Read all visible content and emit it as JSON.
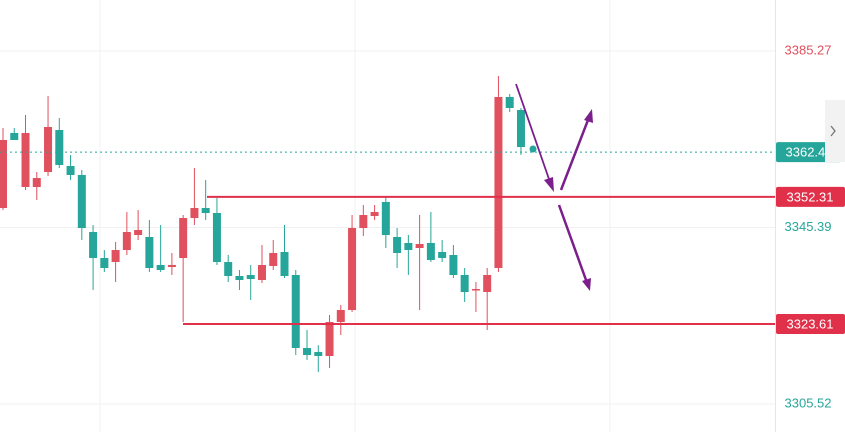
{
  "chart_data": {
    "type": "candlestick",
    "up_color": "#e0505e",
    "down_color": "#26a69a",
    "ylim": [
      3299.2,
      3396.79
    ],
    "yticks": [
      3385.27,
      3345.39,
      3305.52
    ],
    "ytick_colors": [
      "#e0505e",
      "#26a69a",
      "#26a69a"
    ],
    "grid": true,
    "open": [
      3349.8,
      3366.75,
      3354.55,
      3354.55,
      3357.94,
      3367.42,
      3359.29,
      3357.26,
      3344.38,
      3338.51,
      3337.6,
      3340.31,
      3343.7,
      3343.25,
      3336.93,
      3336.47,
      3338.51,
      3347.54,
      3349.8,
      3348.67,
      3337.6,
      3334.44,
      3334.67,
      3333.54,
      3336.7,
      3339.86,
      3334.67,
      3318.18,
      3317.27,
      3316.37,
      3324.05,
      3326.76,
      3345.28,
      3348.0,
      3351.16,
      3343.25,
      3341.9,
      3340.77,
      3341.9,
      3339.86,
      3339.19,
      3334.67,
      3331.28,
      3330.83,
      3336.25,
      3374.88,
      3371.94
    ],
    "high": [
      3367.87,
      3367.87,
      3370.81,
      3357.94,
      3375.1,
      3370.13,
      3361.78,
      3358.39,
      3345.96,
      3340.31,
      3342.12,
      3348.9,
      3349.35,
      3347.09,
      3345.96,
      3339.64,
      3348.22,
      3358.84,
      3356.13,
      3352.06,
      3339.19,
      3335.8,
      3336.93,
      3341.44,
      3342.57,
      3345.96,
      3335.8,
      3322.24,
      3318.8,
      3325.63,
      3327.89,
      3348.22,
      3350.48,
      3350.48,
      3352.51,
      3345.28,
      3343.7,
      3348.22,
      3348.9,
      3342.57,
      3341.44,
      3336.25,
      3333.09,
      3336.25,
      3379.62,
      3375.56,
      3372.39
    ],
    "low": [
      3349.35,
      3365.16,
      3353.87,
      3351.61,
      3357.03,
      3358.84,
      3356.13,
      3342.57,
      3331.28,
      3335.35,
      3333.09,
      3339.19,
      3342.57,
      3335.35,
      3335.35,
      3334.67,
      3324.05,
      3345.96,
      3347.09,
      3336.93,
      3333.09,
      3331.28,
      3329.02,
      3332.86,
      3335.8,
      3333.99,
      3316.6,
      3315.47,
      3312.76,
      3313.66,
      3321.11,
      3326.31,
      3343.48,
      3347.09,
      3340.77,
      3336.25,
      3334.67,
      3326.76,
      3337.6,
      3337.6,
      3333.99,
      3328.57,
      3326.31,
      3322.24,
      3335.35,
      3371.49,
      3361.78
    ],
    "close": [
      3365.16,
      3365.16,
      3366.75,
      3356.58,
      3368.1,
      3359.52,
      3357.26,
      3345.28,
      3338.51,
      3336.25,
      3340.31,
      3344.38,
      3344.83,
      3336.25,
      3335.8,
      3336.93,
      3347.54,
      3349.8,
      3348.67,
      3337.6,
      3334.44,
      3333.54,
      3333.76,
      3336.93,
      3339.64,
      3334.44,
      3318.18,
      3316.6,
      3316.37,
      3324.05,
      3326.76,
      3345.28,
      3348.22,
      3348.9,
      3343.7,
      3339.64,
      3340.31,
      3341.67,
      3338.06,
      3338.51,
      3334.67,
      3330.83,
      3331.5,
      3334.67,
      3374.88,
      3372.39,
      3363.58
    ],
    "current_price": 3362.43,
    "levels": [
      3352.31,
      3323.61
    ]
  }
}
